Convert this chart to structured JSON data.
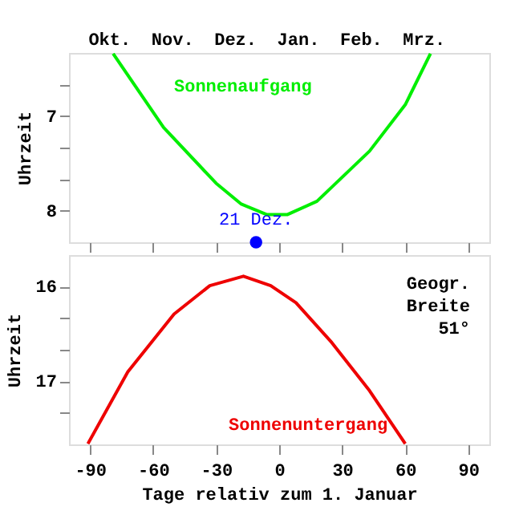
{
  "chart_data": [
    {
      "type": "line",
      "ylabel": "Uhrzeit",
      "xlim": [
        -100,
        100
      ],
      "ylim": [
        8.333,
        6.333
      ],
      "xticks": [
        -90,
        -60,
        -30,
        0,
        30,
        60,
        90
      ],
      "tick_labels": "y",
      "annotations": [
        "Okt.",
        "Nov.",
        "Dez.",
        "Jan.",
        "Feb.",
        "Mrz."
      ],
      "yticks": [
        {
          "value": 6.667,
          "label": null
        },
        7,
        {
          "value": 7.333,
          "label": null
        },
        {
          "value": 7.667,
          "label": null
        },
        8
      ],
      "series": [
        {
          "name": "Sonnenaufgang",
          "color": "#00ee00",
          "x": [
            -79,
            -55,
            -30,
            -18,
            -6,
            4,
            18,
            43,
            60,
            72
          ],
          "values": [
            6.34,
            7.12,
            7.71,
            7.93,
            8.04,
            8.04,
            7.9,
            7.37,
            6.88,
            6.34
          ]
        },
        {
          "name": "21 Dez.",
          "type": "scatter",
          "color": "#0000ff",
          "x": [
            -11
          ],
          "values": [
            8.333
          ]
        }
      ]
    },
    {
      "type": "line",
      "ylabel": "Uhrzeit",
      "xlabel": "Tage relativ zum 1. Januar",
      "xlim": [
        -100,
        100
      ],
      "ylim": [
        17.667,
        15.667
      ],
      "xticks": [
        -90,
        -60,
        -30,
        0,
        30,
        60,
        90
      ],
      "yticks": [
        16,
        {
          "value": 16.333,
          "label": null
        },
        {
          "value": 16.667,
          "label": null
        },
        17,
        {
          "value": 17.333,
          "label": null
        }
      ],
      "annotations": [
        "Geogr.\nBreite\n51°"
      ],
      "series": [
        {
          "name": "Sonnenuntergang",
          "color": "#ee0000",
          "x": [
            -91,
            -72,
            -50,
            -33,
            -17,
            -4,
            8,
            25,
            43,
            60
          ],
          "values": [
            17.66,
            16.9,
            16.29,
            15.99,
            15.89,
            15.99,
            16.17,
            16.59,
            17.1,
            17.66
          ]
        }
      ]
    }
  ]
}
